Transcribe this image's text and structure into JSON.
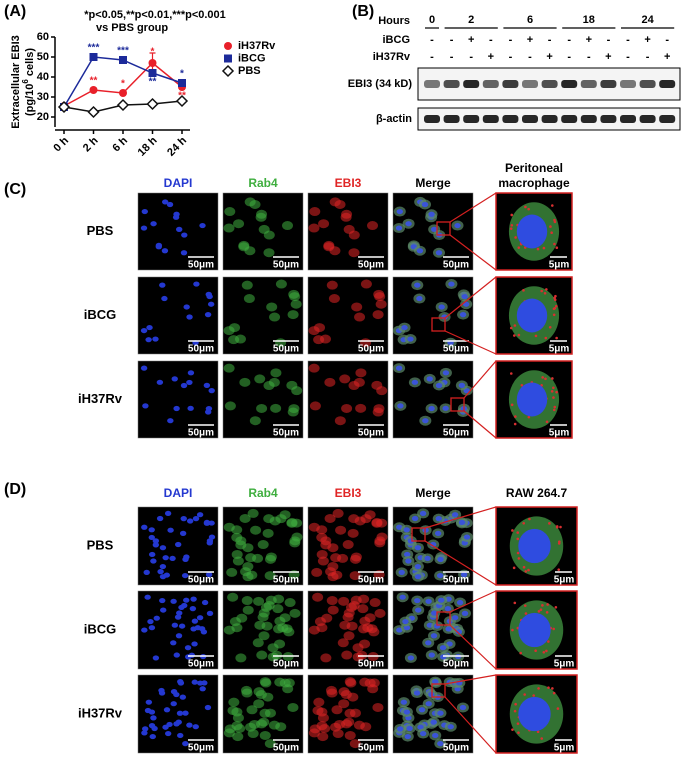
{
  "panel_labels": [
    "(A)",
    "(B)",
    "(C)",
    "(D)"
  ],
  "chart_data": {
    "type": "line",
    "annotation_lines": [
      "*p<0.05,**p<0.01,***p<0.001",
      "vs  PBS group"
    ],
    "ylabel": "Extracellular EBI3",
    "ylabel_unit": [
      "(pg/10",
      "6",
      " cells)"
    ],
    "categories": [
      "0 h",
      "2 h",
      "6 h",
      "18 h",
      "24 h"
    ],
    "ylim": [
      15,
      60
    ],
    "yticks": [
      20,
      30,
      40,
      50,
      60
    ],
    "series": [
      {
        "name": "iH37Rv",
        "color": "#e8202a",
        "marker": "circle",
        "values": [
          25.5,
          33.5,
          32,
          47,
          35
        ],
        "errors": [
          null,
          null,
          null,
          5,
          2
        ],
        "sig_labels": [
          null,
          "**",
          "*",
          "*",
          "**"
        ]
      },
      {
        "name": "iBCG",
        "color": "#1c2a9a",
        "marker": "square",
        "values": [
          25,
          50,
          48.5,
          42,
          37
        ],
        "sig_labels": [
          null,
          "***",
          "***",
          "**",
          "*"
        ]
      },
      {
        "name": "PBS",
        "color": "#111111",
        "marker": "diamond",
        "values": [
          25,
          22.5,
          26,
          26.5,
          28
        ]
      }
    ]
  },
  "western_blot": {
    "hours_label": "Hours",
    "hours": [
      "0",
      "2",
      "6",
      "18",
      "24"
    ],
    "treatments": [
      {
        "name": "iBCG",
        "signs": [
          "-",
          "-",
          "+",
          "-",
          "-",
          "+",
          "-",
          "-",
          "+",
          "-",
          "-",
          "+",
          "-"
        ]
      },
      {
        "name": "iH37Rv",
        "signs": [
          "-",
          "-",
          "-",
          "+",
          "-",
          "-",
          "+",
          "-",
          "-",
          "+",
          "-",
          "-",
          "+"
        ]
      }
    ],
    "blots": [
      "EBI3 (34 kD)",
      "β-actin"
    ]
  },
  "panel_c": {
    "columns": [
      "DAPI",
      "Rab4",
      "EBI3",
      "Merge"
    ],
    "zoom_title": [
      "Peritoneal",
      "macrophage"
    ],
    "rows": [
      "PBS",
      "iBCG",
      "iH37Rv"
    ],
    "scale_bar": "50μm",
    "zoom_scale_bar": "5μm"
  },
  "panel_d": {
    "columns": [
      "DAPI",
      "Rab4",
      "EBI3",
      "Merge"
    ],
    "zoom_title": [
      "RAW 264.7"
    ],
    "rows": [
      "PBS",
      "iBCG",
      "iH37Rv"
    ],
    "scale_bar": "50μm",
    "zoom_scale_bar": "5μm"
  }
}
